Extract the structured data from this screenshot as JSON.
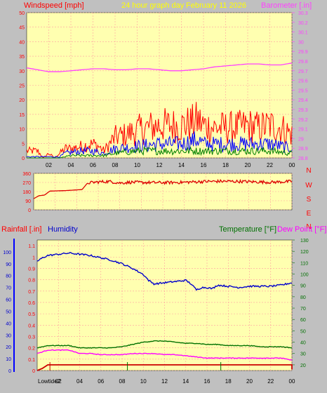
{
  "header": {
    "left_title": "Windspeed [mph]",
    "center_title": "24 hour graph day",
    "date": "February 11 2026",
    "right_title": "Barometer [.in]"
  },
  "colors": {
    "background": "#c0c0c0",
    "plot_bg": "#ffffb0",
    "grid": "#ff9f9f",
    "windspeed": "#ff0000",
    "wind_avg": "#0000ff",
    "wind_low": "#008000",
    "barometer": "#ff40ff",
    "direction": "#dd0000",
    "humidity": "#0000cc",
    "temperature": "#007000",
    "dewpoint": "#ff00ff",
    "rain": "#cc0000"
  },
  "chart_data": [
    {
      "type": "line",
      "title": "Windspeed [mph]",
      "x_ticks": [
        "02",
        "04",
        "06",
        "08",
        "10",
        "12",
        "14",
        "16",
        "18",
        "20",
        "22",
        "00"
      ],
      "y_left_label": "Windspeed [mph]",
      "y_left_ticks": [
        "0",
        "5",
        "10",
        "15",
        "20",
        "25",
        "30",
        "35",
        "40",
        "45",
        "50"
      ],
      "y_left_range": [
        0,
        50
      ],
      "y_right_label": "Barometer [.in]",
      "y_right_ticks": [
        "28.8",
        "28.9",
        "29",
        "29.1",
        "29.2",
        "29.3",
        "29.4",
        "29.5",
        "29.6",
        "29.7",
        "29.8",
        "29.9",
        "30",
        "30.1",
        "30.2",
        "30.3"
      ],
      "y_right_range": [
        28.8,
        30.3
      ],
      "grid": true,
      "series": [
        {
          "key": "gust",
          "axis": "left",
          "color": "#ff0000",
          "style": "spiky",
          "points": [
            [
              0,
              3
            ],
            [
              1,
              3
            ],
            [
              1.5,
              0
            ],
            [
              2,
              2
            ],
            [
              2.5,
              0
            ],
            [
              3,
              2
            ],
            [
              3.5,
              4
            ],
            [
              4,
              4
            ],
            [
              5,
              5
            ],
            [
              6,
              6
            ],
            [
              6.5,
              5
            ],
            [
              7,
              3
            ],
            [
              7.5,
              6
            ],
            [
              8,
              9
            ],
            [
              9,
              10
            ],
            [
              10,
              12
            ],
            [
              11,
              13
            ],
            [
              12,
              14
            ],
            [
              13,
              14
            ],
            [
              14,
              14
            ],
            [
              15,
              15
            ],
            [
              15.5,
              16
            ],
            [
              16,
              14
            ],
            [
              17,
              13
            ],
            [
              18,
              13
            ],
            [
              19,
              13
            ],
            [
              20,
              14
            ],
            [
              21,
              13
            ],
            [
              22,
              14
            ],
            [
              23,
              13
            ],
            [
              23.7,
              11
            ],
            [
              24,
              10
            ]
          ]
        },
        {
          "key": "avg",
          "axis": "left",
          "color": "#0000ff",
          "style": "spiky",
          "points": [
            [
              0,
              0.5
            ],
            [
              3,
              0.5
            ],
            [
              3.5,
              2
            ],
            [
              5,
              3
            ],
            [
              6,
              3
            ],
            [
              7,
              2
            ],
            [
              8,
              4
            ],
            [
              10,
              5
            ],
            [
              12,
              6
            ],
            [
              14,
              6
            ],
            [
              15.5,
              8
            ],
            [
              16,
              6
            ],
            [
              18,
              6
            ],
            [
              20,
              6
            ],
            [
              22,
              6
            ],
            [
              24,
              4
            ]
          ]
        },
        {
          "key": "low",
          "axis": "left",
          "color": "#008000",
          "style": "spiky",
          "points": [
            [
              0,
              0
            ],
            [
              3,
              0
            ],
            [
              4,
              1
            ],
            [
              6,
              1
            ],
            [
              7,
              1
            ],
            [
              8,
              2
            ],
            [
              10,
              3
            ],
            [
              12,
              3
            ],
            [
              14,
              3
            ],
            [
              16,
              3
            ],
            [
              18,
              3
            ],
            [
              20,
              3
            ],
            [
              22,
              3
            ],
            [
              24,
              2
            ]
          ]
        },
        {
          "key": "barometer",
          "axis": "right",
          "color": "#ff40ff",
          "style": "smooth",
          "points": [
            [
              0,
              29.73
            ],
            [
              1,
              29.71
            ],
            [
              2,
              29.69
            ],
            [
              3,
              29.69
            ],
            [
              4,
              29.7
            ],
            [
              5,
              29.71
            ],
            [
              6,
              29.72
            ],
            [
              7,
              29.72
            ],
            [
              8,
              29.71
            ],
            [
              9,
              29.71
            ],
            [
              10,
              29.72
            ],
            [
              11,
              29.72
            ],
            [
              12,
              29.71
            ],
            [
              13,
              29.7
            ],
            [
              14,
              29.7
            ],
            [
              15,
              29.71
            ],
            [
              16,
              29.72
            ],
            [
              17,
              29.74
            ],
            [
              18,
              29.75
            ],
            [
              19,
              29.76
            ],
            [
              20,
              29.77
            ],
            [
              21,
              29.77
            ],
            [
              22,
              29.76
            ],
            [
              23,
              29.76
            ],
            [
              24,
              29.78
            ]
          ]
        }
      ]
    },
    {
      "type": "line",
      "title": "",
      "x_ticks": [],
      "y_left_ticks": [
        "0",
        "90",
        "180",
        "270",
        "360"
      ],
      "y_left_range": [
        0,
        360
      ],
      "y_right_ticks": [
        "N",
        "W",
        "S",
        "E",
        "N"
      ],
      "grid": true,
      "series": [
        {
          "key": "direction",
          "axis": "left",
          "color": "#dd0000",
          "style": "noisy",
          "points": [
            [
              0,
              110
            ],
            [
              0.5,
              140
            ],
            [
              1,
              145
            ],
            [
              1.5,
              185
            ],
            [
              3,
              190
            ],
            [
              4.5,
              200
            ],
            [
              5,
              265
            ],
            [
              6,
              275
            ],
            [
              7,
              280
            ],
            [
              8,
              265
            ],
            [
              9,
              272
            ],
            [
              10,
              270
            ],
            [
              12,
              268
            ],
            [
              14,
              272
            ],
            [
              16,
              280
            ],
            [
              18,
              282
            ],
            [
              20,
              278
            ],
            [
              22,
              272
            ],
            [
              24,
              280
            ]
          ]
        }
      ]
    },
    {
      "type": "line",
      "title": "",
      "x_ticks": [
        "02",
        "04",
        "06",
        "08",
        "10",
        "12",
        "14",
        "16",
        "18",
        "20",
        "22",
        "00"
      ],
      "y_left_label": "Rainfall [.in]",
      "y_left2_label": "Humidity",
      "y_left_ticks": [
        "0",
        "0.1",
        "0.2",
        "0.3",
        "0.4",
        "0.5",
        "0.6",
        "0.7",
        "0.8",
        "0.9",
        "1",
        "1.1"
      ],
      "y_left_range": [
        0,
        1.15
      ],
      "y_hum_ticks": [
        "0",
        "10",
        "20",
        "30",
        "40",
        "50",
        "60",
        "70",
        "80",
        "90",
        "100"
      ],
      "y_hum_range": [
        0,
        110
      ],
      "y_right_label": "Temperature [°F]",
      "y_right2_label": "Dew Point [°F]",
      "y_right_ticks": [
        "20",
        "30",
        "40",
        "50",
        "60",
        "70",
        "80",
        "90",
        "100",
        "110",
        "120",
        "130"
      ],
      "y_right_range": [
        15,
        130
      ],
      "footer_label": "Lowtide2",
      "grid": true,
      "series": [
        {
          "key": "humidity",
          "axis": "hum",
          "color": "#0000cc",
          "style": "smooth",
          "points": [
            [
              0,
              92
            ],
            [
              0.5,
              95
            ],
            [
              1,
              97
            ],
            [
              2,
              98
            ],
            [
              3,
              99
            ],
            [
              4,
              98
            ],
            [
              5,
              97
            ],
            [
              6,
              95
            ],
            [
              7,
              93
            ],
            [
              8,
              90
            ],
            [
              9,
              86
            ],
            [
              10,
              81
            ],
            [
              10.5,
              76
            ],
            [
              11,
              73
            ],
            [
              12,
              74
            ],
            [
              13,
              75
            ],
            [
              14,
              76
            ],
            [
              14.5,
              73
            ],
            [
              15,
              68
            ],
            [
              15.5,
              70
            ],
            [
              16,
              70
            ],
            [
              16.5,
              69
            ],
            [
              17,
              72
            ],
            [
              18,
              71
            ],
            [
              19,
              70
            ],
            [
              20,
              71
            ],
            [
              21,
              71
            ],
            [
              22,
              71
            ],
            [
              23,
              72
            ],
            [
              24,
              74
            ]
          ]
        },
        {
          "key": "temperature",
          "axis": "right",
          "color": "#007000",
          "style": "smooth",
          "points": [
            [
              0,
              35
            ],
            [
              1,
              37
            ],
            [
              2,
              37
            ],
            [
              3,
              37
            ],
            [
              4,
              35
            ],
            [
              5,
              35
            ],
            [
              6,
              35
            ],
            [
              7,
              35
            ],
            [
              8,
              36
            ],
            [
              9,
              38
            ],
            [
              10,
              40
            ],
            [
              11,
              41
            ],
            [
              12,
              41
            ],
            [
              13,
              40
            ],
            [
              14,
              39
            ],
            [
              15,
              39
            ],
            [
              16,
              38
            ],
            [
              17,
              38
            ],
            [
              18,
              37
            ],
            [
              19,
              37
            ],
            [
              20,
              37
            ],
            [
              21,
              36
            ],
            [
              22,
              36
            ],
            [
              23,
              36
            ],
            [
              24,
              35
            ]
          ]
        },
        {
          "key": "dewpoint",
          "axis": "right",
          "color": "#ff00ff",
          "style": "smooth",
          "points": [
            [
              0,
              30
            ],
            [
              1,
              33
            ],
            [
              2,
              33
            ],
            [
              3,
              33
            ],
            [
              4,
              30
            ],
            [
              5,
              30
            ],
            [
              6,
              29
            ],
            [
              7,
              29
            ],
            [
              8,
              29
            ],
            [
              9,
              30
            ],
            [
              10,
              30
            ],
            [
              11,
              30
            ],
            [
              12,
              29
            ],
            [
              13,
              29
            ],
            [
              14,
              28
            ],
            [
              15,
              27
            ],
            [
              16,
              26
            ],
            [
              17,
              26
            ],
            [
              18,
              26
            ],
            [
              19,
              26
            ],
            [
              20,
              26
            ],
            [
              21,
              26
            ],
            [
              22,
              26
            ],
            [
              23,
              26
            ],
            [
              24,
              24
            ]
          ]
        },
        {
          "key": "rain",
          "axis": "left",
          "color": "#cc0000",
          "style": "step",
          "points": [
            [
              0,
              0
            ],
            [
              0.5,
              0.02
            ],
            [
              1,
              0.05
            ],
            [
              3,
              0.05
            ],
            [
              7,
              0.05
            ],
            [
              14,
              0.05
            ],
            [
              20,
              0.05
            ],
            [
              24,
              0.05
            ],
            [
              24,
              0.01
            ]
          ]
        }
      ]
    }
  ]
}
